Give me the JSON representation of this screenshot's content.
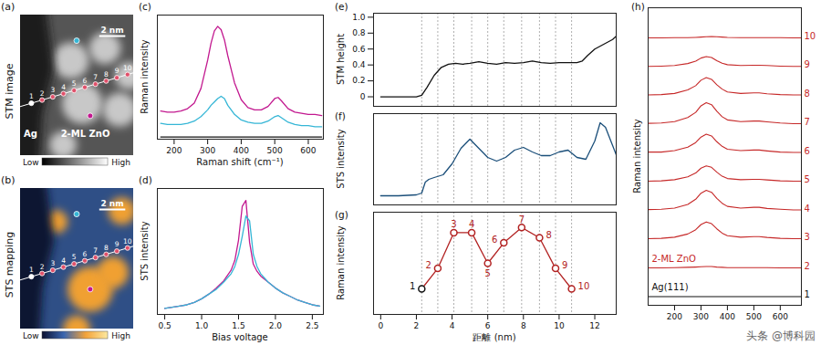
{
  "chart_data": [
    {
      "panel": "(c)",
      "type": "line",
      "ylabel": "Raman intensity",
      "xlabel": "Raman shift (cm⁻¹)",
      "x": [
        160,
        180,
        200,
        220,
        240,
        260,
        280,
        300,
        310,
        320,
        330,
        340,
        350,
        360,
        380,
        400,
        420,
        440,
        460,
        480,
        500,
        510,
        520,
        540,
        560,
        580,
        600,
        620,
        640
      ],
      "series": [
        {
          "color": "#c2188f",
          "values": [
            0.25,
            0.24,
            0.24,
            0.25,
            0.27,
            0.32,
            0.45,
            0.7,
            0.85,
            0.96,
            1.0,
            0.97,
            0.88,
            0.74,
            0.5,
            0.35,
            0.28,
            0.26,
            0.26,
            0.29,
            0.36,
            0.37,
            0.34,
            0.27,
            0.24,
            0.23,
            0.22,
            0.22,
            0.21
          ]
        },
        {
          "color": "#35b6d6",
          "values": [
            0.14,
            0.13,
            0.13,
            0.13,
            0.14,
            0.16,
            0.2,
            0.26,
            0.3,
            0.33,
            0.36,
            0.38,
            0.36,
            0.3,
            0.22,
            0.17,
            0.15,
            0.14,
            0.14,
            0.16,
            0.2,
            0.21,
            0.19,
            0.15,
            0.13,
            0.12,
            0.12,
            0.11,
            0.11
          ]
        },
        {
          "color": "#111111",
          "values": [
            0.02,
            0.02,
            0.02,
            0.02,
            0.02,
            0.02,
            0.02,
            0.02,
            0.02,
            0.02,
            0.02,
            0.02,
            0.02,
            0.02,
            0.02,
            0.02,
            0.02,
            0.02,
            0.02,
            0.02,
            0.02,
            0.02,
            0.02,
            0.02,
            0.02,
            0.02,
            0.02,
            0.02,
            0.02
          ]
        }
      ],
      "xlim": [
        150,
        645
      ],
      "xticks": [
        200,
        300,
        400,
        500,
        600
      ],
      "ylim": [
        0,
        1.1
      ],
      "tick_labels": "x"
    },
    {
      "panel": "(d)",
      "type": "line",
      "ylabel": "STS intensity",
      "xlabel": "Bias voltage",
      "x": [
        0.5,
        0.6,
        0.7,
        0.8,
        0.9,
        1.0,
        1.1,
        1.2,
        1.3,
        1.4,
        1.45,
        1.5,
        1.55,
        1.6,
        1.65,
        1.7,
        1.75,
        1.8,
        1.9,
        2.0,
        2.1,
        2.2,
        2.3,
        2.4,
        2.5,
        2.6
      ],
      "series": [
        {
          "color": "#c2188f",
          "values": [
            0.05,
            0.06,
            0.07,
            0.08,
            0.1,
            0.13,
            0.17,
            0.22,
            0.28,
            0.37,
            0.45,
            0.62,
            0.9,
            0.95,
            0.6,
            0.42,
            0.36,
            0.32,
            0.27,
            0.22,
            0.18,
            0.15,
            0.12,
            0.1,
            0.08,
            0.07
          ]
        },
        {
          "color": "#35b6d6",
          "values": [
            0.05,
            0.06,
            0.07,
            0.08,
            0.1,
            0.13,
            0.17,
            0.21,
            0.27,
            0.34,
            0.4,
            0.5,
            0.65,
            0.82,
            0.78,
            0.5,
            0.4,
            0.34,
            0.27,
            0.22,
            0.18,
            0.15,
            0.12,
            0.1,
            0.08,
            0.07
          ]
        }
      ],
      "xlim": [
        0.4,
        2.65
      ],
      "xticks": [
        0.5,
        {
          "value": 1,
          "label": "1.0"
        },
        1.5,
        {
          "value": 2,
          "label": "2.0"
        },
        2.5
      ],
      "ylim": [
        0,
        1.05
      ],
      "tick_labels": "x"
    },
    {
      "panel": "(e)",
      "type": "line",
      "ylabel": "STM height",
      "x": [
        0,
        1,
        2,
        2.3,
        2.6,
        3.0,
        3.4,
        3.8,
        4.2,
        4.6,
        5.0,
        5.5,
        6.0,
        6.5,
        7.0,
        7.5,
        8.0,
        8.5,
        9.0,
        9.5,
        10.0,
        10.5,
        11.0,
        11.3,
        11.6,
        12.0,
        12.5,
        13.0,
        13.2
      ],
      "values": [
        0,
        0,
        0,
        0.02,
        0.12,
        0.27,
        0.37,
        0.41,
        0.42,
        0.41,
        0.42,
        0.44,
        0.42,
        0.41,
        0.43,
        0.42,
        0.43,
        0.45,
        0.43,
        0.42,
        0.43,
        0.43,
        0.43,
        0.45,
        0.52,
        0.6,
        0.66,
        0.72,
        0.76
      ],
      "color": "#111111",
      "xlim": [
        -0.4,
        13.2
      ],
      "ylim": [
        -0.12,
        1.05
      ],
      "yticks": [
        0,
        0.2,
        0.4,
        0.6,
        0.8,
        {
          "value": 1,
          "label": "1.0"
        }
      ],
      "tick_labels": "y",
      "grid": "x"
    },
    {
      "panel": "(f)",
      "type": "line",
      "ylabel": "STS intensity",
      "x": [
        0,
        1,
        2,
        2.3,
        2.5,
        2.7,
        3.0,
        3.5,
        4.0,
        4.5,
        5.0,
        5.5,
        6.0,
        6.5,
        7.0,
        7.5,
        8.0,
        8.5,
        9.0,
        9.5,
        10.0,
        10.5,
        11.0,
        11.5,
        12.0,
        12.3,
        12.6,
        13.0,
        13.2
      ],
      "values": [
        0.1,
        0.1,
        0.11,
        0.13,
        0.25,
        0.28,
        0.3,
        0.33,
        0.45,
        0.62,
        0.72,
        0.62,
        0.52,
        0.48,
        0.52,
        0.6,
        0.63,
        0.58,
        0.54,
        0.54,
        0.58,
        0.6,
        0.52,
        0.5,
        0.7,
        0.9,
        0.85,
        0.65,
        0.55
      ],
      "color": "#1b4f7a",
      "xlim": [
        -0.4,
        13.2
      ],
      "ylim": [
        0,
        1
      ],
      "tick_labels": false,
      "grid": "x"
    },
    {
      "panel": "(g)",
      "type": "line",
      "ylabel": "Raman intensity",
      "xlabel": "距離 (nm)",
      "x": [
        2.3,
        3.2,
        4.1,
        5.1,
        6.0,
        6.9,
        7.9,
        8.9,
        9.8,
        10.7
      ],
      "values": [
        0.25,
        0.45,
        0.8,
        0.8,
        0.5,
        0.7,
        0.85,
        0.75,
        0.45,
        0.25
      ],
      "labels": [
        "1",
        "2",
        "3",
        "4",
        "5",
        "6",
        "7",
        "8",
        "9",
        "10"
      ],
      "color": "#b22222",
      "colors": [
        "#111111",
        "#b22222",
        "#b22222",
        "#b22222",
        "#b22222",
        "#b22222",
        "#b22222",
        "#b22222",
        "#b22222",
        "#b22222"
      ],
      "marker": "circle",
      "xlim": [
        -0.4,
        13.2
      ],
      "xticks": [
        0,
        2,
        4,
        6,
        8,
        10,
        12
      ],
      "ylim": [
        0,
        1
      ],
      "tick_labels": "x",
      "grid": "x"
    },
    {
      "panel": "(h)",
      "type": "ridgeline",
      "ylabel": "Raman intensity",
      "x": [
        100,
        150,
        200,
        250,
        280,
        300,
        320,
        340,
        360,
        380,
        400,
        450,
        500,
        520,
        550,
        600,
        650,
        680
      ],
      "series": [
        {
          "label": "1",
          "note": "Ag(111)",
          "color": "#111111",
          "values": [
            0,
            0,
            0,
            0,
            0,
            0,
            0,
            0,
            0,
            0,
            0,
            0,
            0,
            0,
            0,
            0,
            0,
            0
          ]
        },
        {
          "label": "2",
          "note": "2-ML ZnO",
          "color": "#c62828",
          "values": [
            0,
            0,
            0.01,
            0.02,
            0.03,
            0.04,
            0.05,
            0.05,
            0.03,
            0.02,
            0.01,
            0.01,
            0.01,
            0.01,
            0.01,
            0,
            0,
            0
          ]
        },
        {
          "label": "3",
          "color": "#c62828",
          "values": [
            0.02,
            0.03,
            0.07,
            0.18,
            0.33,
            0.51,
            0.6,
            0.54,
            0.36,
            0.21,
            0.12,
            0.07,
            0.09,
            0.09,
            0.06,
            0.03,
            0.02,
            0.02
          ]
        },
        {
          "label": "4",
          "color": "#c62828",
          "values": [
            0.03,
            0.04,
            0.08,
            0.21,
            0.39,
            0.6,
            0.7,
            0.63,
            0.42,
            0.25,
            0.14,
            0.08,
            0.11,
            0.11,
            0.07,
            0.04,
            0.02,
            0.02
          ]
        },
        {
          "label": "5",
          "color": "#c62828",
          "values": [
            0.02,
            0.03,
            0.07,
            0.17,
            0.3,
            0.47,
            0.55,
            0.5,
            0.33,
            0.19,
            0.11,
            0.07,
            0.08,
            0.08,
            0.06,
            0.03,
            0.02,
            0.02
          ]
        },
        {
          "label": "6",
          "color": "#c62828",
          "values": [
            0.03,
            0.03,
            0.08,
            0.2,
            0.36,
            0.55,
            0.65,
            0.59,
            0.39,
            0.23,
            0.13,
            0.08,
            0.1,
            0.1,
            0.07,
            0.03,
            0.02,
            0.02
          ]
        },
        {
          "label": "7",
          "color": "#c62828",
          "values": [
            0.03,
            0.04,
            0.09,
            0.23,
            0.41,
            0.64,
            0.75,
            0.68,
            0.45,
            0.26,
            0.15,
            0.09,
            0.11,
            0.11,
            0.08,
            0.04,
            0.02,
            0.02
          ]
        },
        {
          "label": "8",
          "color": "#c62828",
          "values": [
            0.02,
            0.03,
            0.07,
            0.19,
            0.34,
            0.53,
            0.62,
            0.56,
            0.37,
            0.22,
            0.12,
            0.07,
            0.09,
            0.09,
            0.06,
            0.03,
            0.02,
            0.02
          ]
        },
        {
          "label": "9",
          "color": "#c62828",
          "values": [
            0.01,
            0.02,
            0.04,
            0.11,
            0.19,
            0.3,
            0.35,
            0.32,
            0.21,
            0.12,
            0.07,
            0.04,
            0.05,
            0.05,
            0.04,
            0.02,
            0.01,
            0.01
          ]
        },
        {
          "label": "10",
          "color": "#c62828",
          "values": [
            0,
            0,
            0.01,
            0.01,
            0.02,
            0.03,
            0.04,
            0.05,
            0.04,
            0.03,
            0.02,
            0.01,
            0.01,
            0.01,
            0.01,
            0.01,
            0,
            0
          ]
        }
      ],
      "xlim": [
        100,
        680
      ],
      "xticks": [
        200,
        300,
        400,
        500,
        600
      ],
      "tick_labels": "x"
    }
  ],
  "images": [
    {
      "panel": "(a)",
      "title": "STM image",
      "labels": [
        "Ag",
        "2-ML ZnO"
      ],
      "scale_bar": "2 nm",
      "colorbar": [
        "Low",
        "High"
      ],
      "points": [
        "1",
        "2",
        "3",
        "4",
        "5",
        "6",
        "7",
        "8",
        "9",
        "10"
      ]
    },
    {
      "panel": "(b)",
      "title": "STS mapping",
      "labels": [],
      "scale_bar": "2 nm",
      "colorbar": [
        "Low",
        "High"
      ],
      "points": [
        "1",
        "2",
        "3",
        "4",
        "5",
        "6",
        "7",
        "8",
        "9",
        "10"
      ]
    }
  ],
  "watermark": "头条 @博科园"
}
